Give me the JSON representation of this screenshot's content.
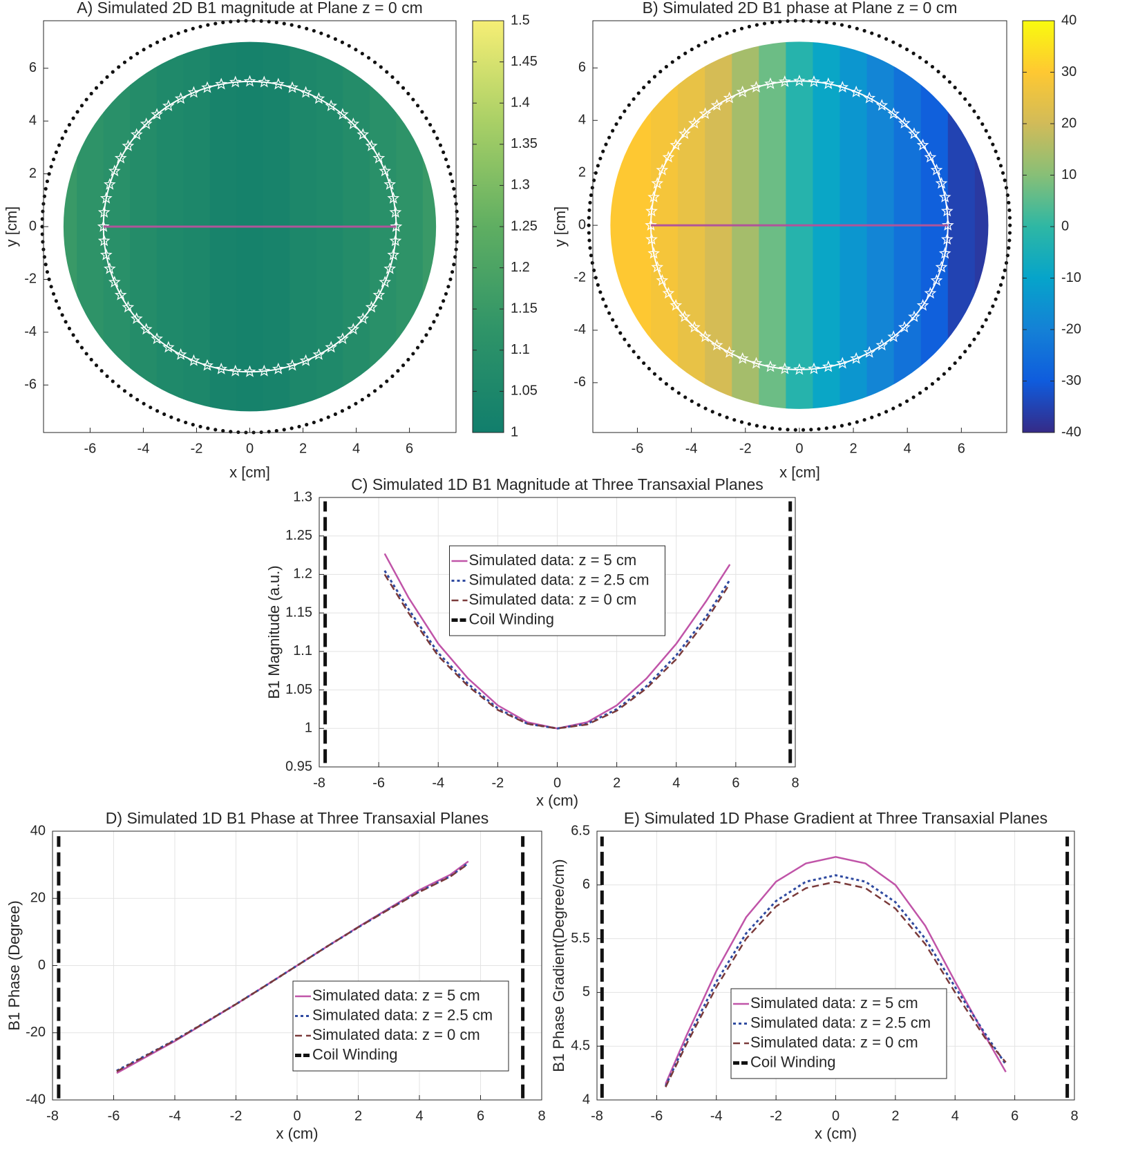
{
  "chart_data": [
    {
      "type": "heatmap",
      "title": "A) Simulated 2D B1 magnitude at Plane z = 0 cm",
      "xlabel": "x [cm]",
      "ylabel": "y [cm]",
      "x": [
        -7,
        -6,
        -5,
        -4,
        -3,
        -2,
        -1,
        0,
        1,
        2,
        3,
        4,
        5,
        6,
        7
      ],
      "values": [
        1.15,
        1.12,
        1.1,
        1.08,
        1.06,
        1.05,
        1.03,
        1.02,
        1.03,
        1.05,
        1.06,
        1.08,
        1.1,
        1.12,
        1.15
      ],
      "colormap": [
        "#117e6c",
        "#2f9468",
        "#5fae62",
        "#a8cf66",
        "#f6ee75"
      ],
      "clim": [
        1,
        1.5
      ],
      "cticks": [
        1,
        1.05,
        1.1,
        1.15,
        1.2,
        1.25,
        1.3,
        1.35,
        1.4,
        1.45,
        1.5
      ],
      "domain_radius": 7,
      "coil_radius": 7.8,
      "sample_radius": 5.5,
      "profile_color": "#b0549a",
      "xlim": [
        -7.75,
        7.75
      ],
      "ylim": [
        -7.8,
        7.8
      ],
      "xticks": [
        -6,
        -4,
        -2,
        0,
        2,
        4,
        6
      ],
      "yticks": [
        -6,
        -4,
        -2,
        0,
        2,
        4,
        6
      ]
    },
    {
      "type": "heatmap",
      "title": "B) Simulated 2D B1 phase at Plane z = 0 cm",
      "xlabel": "x [cm]",
      "ylabel": "y [cm]",
      "x": [
        -7,
        -6,
        -5,
        -4,
        -3,
        -2,
        -1,
        0,
        1,
        2,
        3,
        4,
        5,
        6,
        7
      ],
      "values": [
        30,
        30,
        28,
        25,
        21,
        14,
        7,
        -2,
        -9,
        -14,
        -19,
        -24,
        -29,
        -35,
        -37
      ],
      "colormap": [
        "#352a87",
        "#0f5cdd",
        "#1481d6",
        "#06a4ca",
        "#2eb7a4",
        "#87bf77",
        "#d1bb59",
        "#fec832",
        "#f9fb0e"
      ],
      "clim": [
        -40,
        40
      ],
      "cticks": [
        -40,
        -30,
        -20,
        -10,
        0,
        10,
        20,
        30,
        40
      ],
      "domain_radius": 7,
      "coil_radius": 7.8,
      "sample_radius": 5.5,
      "profile_color": "#b0549a",
      "xlim": [
        -7.65,
        7.68
      ],
      "ylim": [
        -7.9,
        7.8
      ],
      "xticks": [
        -6,
        -4,
        -2,
        0,
        2,
        4,
        6
      ],
      "yticks": [
        -6,
        -4,
        -2,
        0,
        2,
        4,
        6
      ]
    },
    {
      "type": "line",
      "title": "C) Simulated 1D B1 Magnitude at Three Transaxial Planes",
      "xlabel": "x (cm)",
      "ylabel": "B1 Magnitude (a.u.)",
      "xlim": [
        -8,
        8
      ],
      "ylim": [
        0.95,
        1.3
      ],
      "xticks": [
        -8,
        -6,
        -4,
        -2,
        0,
        2,
        4,
        6,
        8
      ],
      "yticks": [
        0.95,
        1,
        1.05,
        1.1,
        1.15,
        1.2,
        1.25,
        1.3
      ],
      "grid": true,
      "legend": "upper center",
      "series": [
        {
          "name": "Simulated data: z = 5 cm",
          "color": "#c054a8",
          "dash": "solid",
          "x": [
            -5.8,
            -5,
            -4,
            -3,
            -2,
            -1,
            0,
            1,
            2,
            3,
            4,
            5,
            5.8
          ],
          "values": [
            1.227,
            1.17,
            1.11,
            1.065,
            1.03,
            1.008,
            1.0,
            1.008,
            1.03,
            1.065,
            1.11,
            1.165,
            1.213
          ]
        },
        {
          "name": "Simulated data: z = 2.5 cm",
          "color": "#2f4aa0",
          "dash": "dotted",
          "x": [
            -5.8,
            -5,
            -4,
            -3,
            -2,
            -1,
            0,
            1,
            2,
            3,
            4,
            5,
            5.8
          ],
          "values": [
            1.205,
            1.155,
            1.098,
            1.058,
            1.026,
            1.006,
            1.0,
            1.006,
            1.025,
            1.055,
            1.095,
            1.145,
            1.193
          ]
        },
        {
          "name": "Simulated data: z = 0 cm",
          "color": "#7a3a3a",
          "dash": "dashed",
          "x": [
            -5.8,
            -5,
            -4,
            -3,
            -2,
            -1,
            0,
            1,
            2,
            3,
            4,
            5,
            5.8
          ],
          "values": [
            1.2,
            1.15,
            1.094,
            1.055,
            1.024,
            1.006,
            1.0,
            1.005,
            1.023,
            1.052,
            1.09,
            1.14,
            1.188
          ]
        },
        {
          "name": "Coil Winding",
          "color": "#111111",
          "dash": "coil",
          "x": [
            -7.8,
            -7.8,
            null,
            7.83,
            7.83
          ],
          "values": [
            0.955,
            1.295,
            null,
            0.955,
            1.295
          ]
        }
      ]
    },
    {
      "type": "line",
      "title": "D) Simulated 1D B1 Phase at Three Transaxial Planes",
      "xlabel": "x (cm)",
      "ylabel": "B1 Phase (Degree)",
      "xlim": [
        -8,
        8
      ],
      "ylim": [
        -40,
        40
      ],
      "xticks": [
        -8,
        -6,
        -4,
        -2,
        0,
        2,
        4,
        6,
        8
      ],
      "yticks": [
        -40,
        -20,
        0,
        20,
        40
      ],
      "grid": true,
      "legend": "lower right",
      "series": [
        {
          "name": "Simulated data: z = 5 cm",
          "color": "#c054a8",
          "dash": "solid",
          "x": [
            -5.9,
            -5,
            -4,
            -3,
            -2,
            -1,
            0,
            1,
            2,
            3,
            4,
            5,
            5.6
          ],
          "values": [
            -32,
            -27.5,
            -22.5,
            -17,
            -11.5,
            -5.8,
            0,
            5.8,
            11.5,
            17,
            22.5,
            27,
            31
          ]
        },
        {
          "name": "Simulated data: z = 2.5 cm",
          "color": "#2f4aa0",
          "dash": "dotted",
          "x": [
            -5.9,
            -5,
            -4,
            -3,
            -2,
            -1,
            0,
            1,
            2,
            3,
            4,
            5,
            5.6
          ],
          "values": [
            -31.3,
            -27,
            -22.2,
            -16.9,
            -11.5,
            -5.8,
            0,
            5.8,
            11.4,
            16.8,
            22,
            26.5,
            30.5
          ]
        },
        {
          "name": "Simulated data: z = 0 cm",
          "color": "#7a3a3a",
          "dash": "dashed",
          "x": [
            -5.9,
            -5,
            -4,
            -3,
            -2,
            -1,
            0,
            1,
            2,
            3,
            4,
            5,
            5.6
          ],
          "values": [
            -31.5,
            -27.1,
            -22.3,
            -16.9,
            -11.5,
            -5.8,
            0,
            5.8,
            11.4,
            16.7,
            21.9,
            26.4,
            30.3
          ]
        },
        {
          "name": "Coil Winding",
          "color": "#111111",
          "dash": "coil",
          "x": [
            -7.8,
            -7.8,
            null,
            7.38,
            7.38
          ],
          "values": [
            -39.5,
            38.5,
            null,
            -39.5,
            38.5
          ]
        }
      ]
    },
    {
      "type": "line",
      "title": "E) Simulated 1D Phase Gradient at Three Transaxial Planes",
      "xlabel": "x (cm)",
      "ylabel": "B1 Phase Gradient(Degree/cm)",
      "xlim": [
        -8,
        8
      ],
      "ylim": [
        4,
        6.5
      ],
      "xticks": [
        -8,
        -6,
        -4,
        -2,
        0,
        2,
        4,
        6,
        8
      ],
      "yticks": [
        4,
        4.5,
        5,
        5.5,
        6,
        6.5
      ],
      "grid": true,
      "legend": "lower left",
      "series": [
        {
          "name": "Simulated data: z = 5 cm",
          "color": "#c054a8",
          "dash": "solid",
          "x": [
            -5.7,
            -5,
            -4,
            -3,
            -2,
            -1,
            0,
            1,
            2,
            3,
            4,
            5,
            5.7
          ],
          "values": [
            4.15,
            4.6,
            5.2,
            5.7,
            6.03,
            6.2,
            6.26,
            6.2,
            6.0,
            5.62,
            5.1,
            4.6,
            4.26
          ]
        },
        {
          "name": "Simulated data: z = 2.5 cm",
          "color": "#2f4aa0",
          "dash": "dotted",
          "x": [
            -5.7,
            -5,
            -4,
            -3,
            -2,
            -1,
            0,
            1,
            2,
            3,
            4,
            5,
            5.7
          ],
          "values": [
            4.13,
            4.55,
            5.1,
            5.55,
            5.85,
            6.03,
            6.09,
            6.03,
            5.84,
            5.5,
            5.05,
            4.62,
            4.33
          ]
        },
        {
          "name": "Simulated data: z = 0 cm",
          "color": "#7a3a3a",
          "dash": "dashed",
          "x": [
            -5.7,
            -5,
            -4,
            -3,
            -2,
            -1,
            0,
            1,
            2,
            3,
            4,
            5,
            5.7
          ],
          "values": [
            4.12,
            4.52,
            5.05,
            5.5,
            5.8,
            5.97,
            6.03,
            5.97,
            5.78,
            5.45,
            5.0,
            4.58,
            4.35
          ]
        },
        {
          "name": "Coil Winding",
          "color": "#111111",
          "dash": "coil",
          "x": [
            -7.83,
            -7.83,
            null,
            7.76,
            7.76
          ],
          "values": [
            4.02,
            6.45,
            null,
            4.02,
            6.45
          ]
        }
      ]
    }
  ]
}
